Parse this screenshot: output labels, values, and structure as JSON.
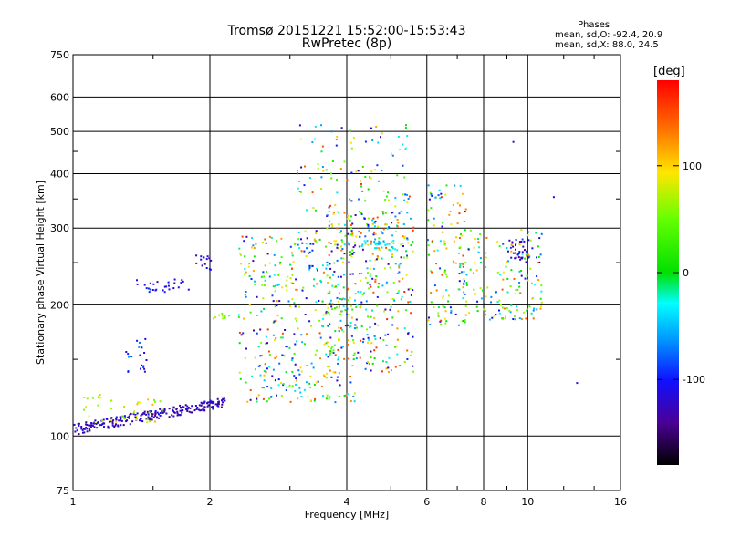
{
  "chart_data": {
    "type": "scatter",
    "title": "Tromsø 20151221 15:52:00-15:53:43",
    "subtitle": "RwPretec (8p)",
    "xlabel": "Frequency [MHz]",
    "ylabel": "Stationary phase Virtual Height [km]",
    "x_scale": "log",
    "y_scale": "log",
    "xlim": [
      1,
      16
    ],
    "ylim": [
      75,
      750
    ],
    "grid": true,
    "x_ticks": [
      "1",
      "2",
      "4",
      "6",
      "8",
      "10",
      "16"
    ],
    "x_tick_values": [
      1,
      2,
      4,
      6,
      8,
      10,
      16
    ],
    "y_ticks": [
      "75",
      "100",
      "200",
      "300",
      "400",
      "500",
      "600",
      "750"
    ],
    "y_tick_values": [
      75,
      100,
      200,
      300,
      400,
      500,
      600,
      750
    ],
    "phase_stats": {
      "heading": "Phases",
      "line1": "mean, sd,O: -92.4, 20.9",
      "line2": "mean, sd,X:  88.0, 24.5"
    },
    "colorbar": {
      "label": "[deg]",
      "ticks": [
        "100",
        "0",
        "-100"
      ],
      "tick_values": [
        100,
        0,
        -100
      ],
      "range": [
        -180,
        180
      ]
    },
    "clusters": [
      {
        "f": [
          1.0,
          2.15
        ],
        "h": [
          103,
          126
        ],
        "ph": [
          -150,
          -100
        ],
        "n": 240
      },
      {
        "f": [
          1.05,
          1.6
        ],
        "h": [
          108,
          125
        ],
        "ph": [
          40,
          120
        ],
        "n": 40
      },
      {
        "f": [
          1.3,
          1.45
        ],
        "h": [
          140,
          170
        ],
        "ph": [
          -120,
          -60
        ],
        "n": 20
      },
      {
        "f": [
          1.35,
          1.8
        ],
        "h": [
          215,
          230
        ],
        "ph": [
          -130,
          -90
        ],
        "n": 28
      },
      {
        "f": [
          1.85,
          2.05
        ],
        "h": [
          240,
          262
        ],
        "ph": [
          -140,
          -90
        ],
        "n": 14
      },
      {
        "f": [
          2.0,
          2.2
        ],
        "h": [
          186,
          192
        ],
        "ph": [
          40,
          80
        ],
        "n": 10
      },
      {
        "f": [
          2.3,
          4.2
        ],
        "h": [
          120,
          290
        ],
        "ph": [
          -140,
          160
        ],
        "n": 400
      },
      {
        "f": [
          3.1,
          5.5
        ],
        "h": [
          260,
          520
        ],
        "ph": [
          -140,
          170
        ],
        "n": 160
      },
      {
        "f": [
          3.6,
          5.6
        ],
        "h": [
          140,
          330
        ],
        "ph": [
          -140,
          170
        ],
        "n": 300
      },
      {
        "f": [
          4.3,
          5.2
        ],
        "h": [
          268,
          282
        ],
        "ph": [
          -60,
          -20
        ],
        "n": 25
      },
      {
        "f": [
          6.0,
          7.3
        ],
        "h": [
          180,
          380
        ],
        "ph": [
          -120,
          170
        ],
        "n": 110
      },
      {
        "f": [
          7.0,
          10.7
        ],
        "h": [
          185,
          300
        ],
        "ph": [
          -120,
          150
        ],
        "n": 170
      },
      {
        "f": [
          9.0,
          10.0
        ],
        "h": [
          255,
          285
        ],
        "ph": [
          -140,
          -100
        ],
        "n": 30
      },
      {
        "f": [
          12.5,
          12.8
        ],
        "h": [
          132,
          136
        ],
        "ph": [
          -110,
          -100
        ],
        "n": 1
      },
      {
        "f": [
          11.2,
          11.4
        ],
        "h": [
          348,
          356
        ],
        "ph": [
          -110,
          -100
        ],
        "n": 1
      },
      {
        "f": [
          9.2,
          9.4
        ],
        "h": [
          470,
          480
        ],
        "ph": [
          -130,
          -120
        ],
        "n": 1
      }
    ]
  }
}
